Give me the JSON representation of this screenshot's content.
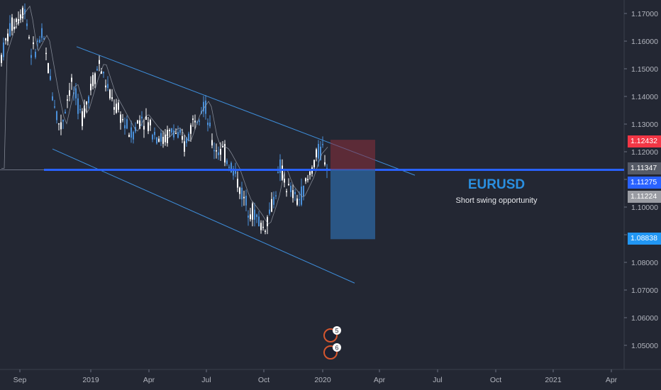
{
  "chart_data": {
    "type": "candlestick",
    "symbol": "EURUSD",
    "subtitle": "Short swing opportunity",
    "y_ticks": [
      "1.17000",
      "1.16000",
      "1.15000",
      "1.14000",
      "1.13000",
      "1.12000",
      "1.11000",
      "1.10000",
      "1.09000",
      "1.08000",
      "1.07000",
      "1.06000",
      "1.05000"
    ],
    "x_ticks": [
      "Sep",
      "2019",
      "Apr",
      "Jul",
      "Oct",
      "2020",
      "Apr",
      "Jul",
      "Oct",
      "2021",
      "Apr"
    ],
    "price_tags": [
      {
        "label": "1.12432",
        "value": 1.12432,
        "color": "#f23645"
      },
      {
        "label": "1.11347",
        "value": 1.11347,
        "color": "#555a66"
      },
      {
        "label": "1.11275",
        "value": 1.11275,
        "color": "#2962ff"
      },
      {
        "label": "1.11224",
        "value": 1.11224,
        "color": "#9a9ca3"
      },
      {
        "label": "1.08838",
        "value": 1.08838,
        "color": "#2196f3"
      }
    ],
    "horizontal_level": 1.11347,
    "position": {
      "entry": 1.1135,
      "stop": 1.12432,
      "target": 1.08838,
      "type": "short"
    },
    "channel": {
      "upper": [
        [
          1.158
        ],
        [
          1.116
        ]
      ],
      "lower": [
        [
          1.121
        ],
        [
          1.072
        ]
      ]
    },
    "event_badges": [
      {
        "label": "5"
      },
      {
        "label": "6"
      }
    ],
    "colors": {
      "bg": "#232733",
      "candle": "#ffffff",
      "candle_blue": "#4a8fd8",
      "channel": "#3e8edb",
      "level": "#2962ff",
      "ma": "#9aa0ac",
      "stop_zone": "#8c2f3a",
      "target_zone": "#2b5f94",
      "accent": "#2a8fe0"
    },
    "y_range": [
      1.042,
      1.178
    ]
  }
}
